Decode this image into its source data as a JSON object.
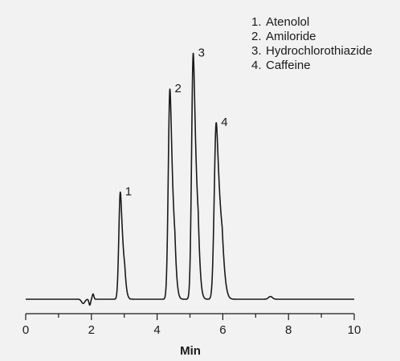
{
  "chart_data": {
    "type": "line",
    "title": "",
    "xlabel": "Min",
    "ylabel": "",
    "xlim": [
      0,
      10
    ],
    "ylim": [
      -0.05,
      1.0
    ],
    "x_ticks": [
      0,
      2,
      4,
      6,
      8,
      10
    ],
    "x_minor_ticks": [
      1,
      3,
      5,
      7,
      9
    ],
    "grid": false,
    "legend_position": "top-right",
    "baseline": 0,
    "line_color": "#1a1a1a",
    "background": "#f2f2f2",
    "disturbances": [
      {
        "x": 1.75,
        "h": -0.02,
        "w": 0.05
      },
      {
        "x": 1.95,
        "h": -0.028,
        "w": 0.025
      },
      {
        "x": 2.05,
        "h": 0.025,
        "w": 0.025
      },
      {
        "x": 7.45,
        "h": 0.013,
        "w": 0.06
      }
    ],
    "peaks": [
      {
        "label": "1",
        "name": "Atenolol",
        "x": 2.88,
        "height": 0.51,
        "width": 0.045,
        "tail": 0.045
      },
      {
        "label": "2",
        "name": "Amiloride",
        "x": 4.39,
        "height": 1.0,
        "width": 0.05,
        "tail": 0.05
      },
      {
        "label": "3",
        "name": "Hydrochlorothiazide",
        "x": 5.1,
        "height": 1.17,
        "width": 0.05,
        "tail": 0.055
      },
      {
        "label": "4",
        "name": "Caffeine",
        "x": 5.8,
        "height": 0.84,
        "width": 0.06,
        "tail": 0.075
      }
    ],
    "legend": [
      {
        "number": "1.",
        "name": "Atenolol"
      },
      {
        "number": "2.",
        "name": "Amiloride"
      },
      {
        "number": "3.",
        "name": "Hydrochlorothiazide"
      },
      {
        "number": "4.",
        "name": "Caffeine"
      }
    ]
  }
}
